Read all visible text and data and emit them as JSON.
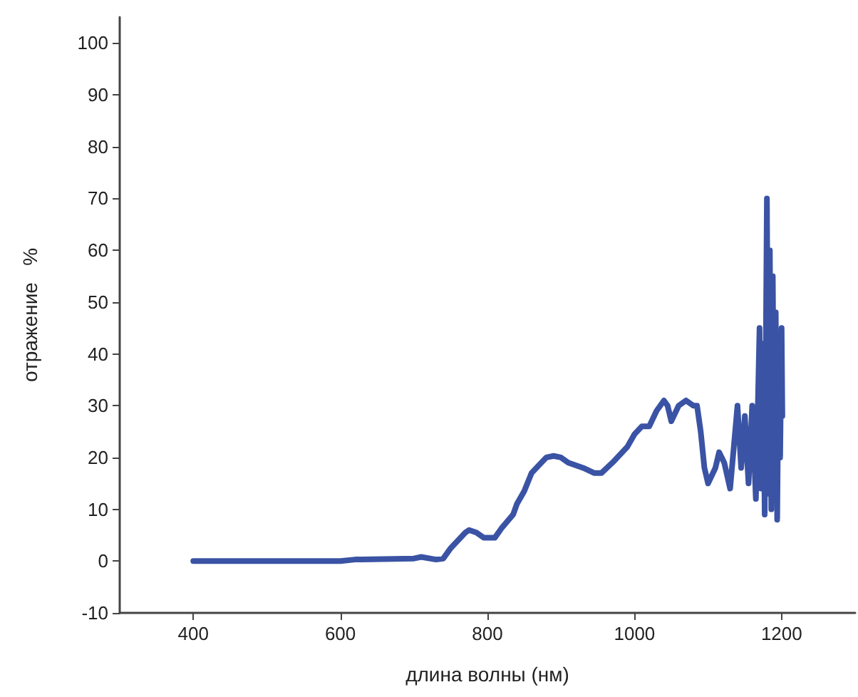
{
  "chart_data": {
    "type": "line",
    "xlabel": "длина волны (нм)",
    "ylabel": "отражение   %",
    "xlim": [
      300,
      1300
    ],
    "xticks": [
      400,
      600,
      800,
      1000,
      1200
    ],
    "ylim": [
      -10,
      105
    ],
    "yticks": [
      -10,
      0,
      10,
      20,
      30,
      40,
      50,
      60,
      70,
      80,
      90,
      100
    ],
    "grid": false,
    "marker": "none",
    "line_style": "solid",
    "series": [
      {
        "color": "#3a53a4",
        "x": [
          400,
          450,
          500,
          600,
          620,
          700,
          710,
          730,
          740,
          750,
          760,
          770,
          775,
          785,
          795,
          810,
          820,
          835,
          840,
          850,
          860,
          870,
          880,
          890,
          900,
          910,
          930,
          945,
          955,
          970,
          990,
          1000,
          1010,
          1020,
          1030,
          1040,
          1045,
          1050,
          1060,
          1070,
          1080,
          1085,
          1090,
          1095,
          1100,
          1110,
          1115,
          1122,
          1130,
          1135,
          1140,
          1145,
          1150,
          1155,
          1160,
          1165,
          1170,
          1172,
          1175,
          1177,
          1180,
          1182,
          1184,
          1186,
          1188,
          1190,
          1192,
          1194,
          1196,
          1198,
          1200,
          1201
        ],
        "values": [
          0,
          0,
          0,
          0,
          0.3,
          0.5,
          0.8,
          0.3,
          0.5,
          2.5,
          4,
          5.5,
          6,
          5.5,
          4.5,
          4.5,
          6.5,
          9,
          11,
          13.5,
          17,
          18.5,
          20,
          20.3,
          20,
          19,
          18,
          17,
          17,
          19,
          22,
          24.5,
          26,
          26,
          29,
          31,
          30,
          27,
          30,
          31,
          30,
          30,
          25,
          18,
          15,
          18,
          21,
          19,
          14,
          22,
          30,
          18,
          28,
          15,
          30,
          12,
          45,
          14,
          42,
          9,
          70,
          13,
          60,
          10,
          55,
          15,
          48,
          8,
          42,
          20,
          45,
          28
        ]
      }
    ]
  }
}
